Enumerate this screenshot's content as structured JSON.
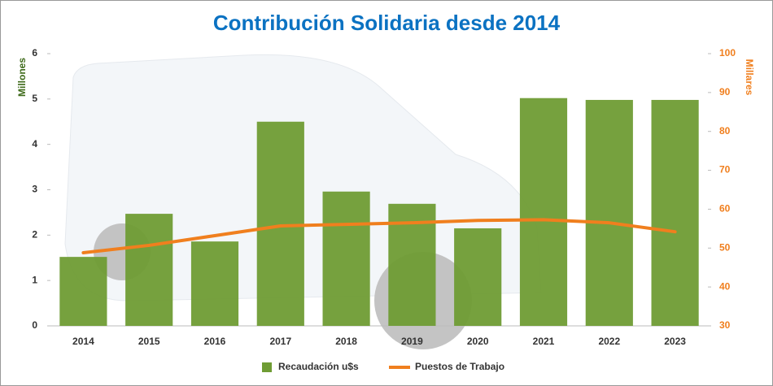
{
  "chart_data": {
    "type": "bar-line",
    "title": "Contribución Solidaria desde 2014",
    "y_label": "Millones",
    "y2_label": "Millares",
    "categories": [
      "2014",
      "2015",
      "2016",
      "2017",
      "2018",
      "2019",
      "2020",
      "2021",
      "2022",
      "2023"
    ],
    "ylim": [
      0,
      6
    ],
    "yticks": [
      0,
      1,
      2,
      3,
      4,
      5,
      6
    ],
    "y2lim": [
      30,
      100
    ],
    "y2ticks": [
      30,
      40,
      50,
      60,
      70,
      80,
      90,
      100
    ],
    "legend": "bottom",
    "series": [
      {
        "name": "Recaudación u$s",
        "type": "bar",
        "color": "#6f9c34",
        "values": [
          1.52,
          2.47,
          1.86,
          4.5,
          2.96,
          2.69,
          2.15,
          5.02,
          4.98,
          4.98
        ]
      },
      {
        "name": "Puestos de Trabajo",
        "type": "line",
        "axis": "y2",
        "color": "#f07f1e",
        "values": [
          48.8,
          50.7,
          53.2,
          55.7,
          56.1,
          56.5,
          57.1,
          57.3,
          56.5,
          54.2
        ]
      }
    ]
  }
}
